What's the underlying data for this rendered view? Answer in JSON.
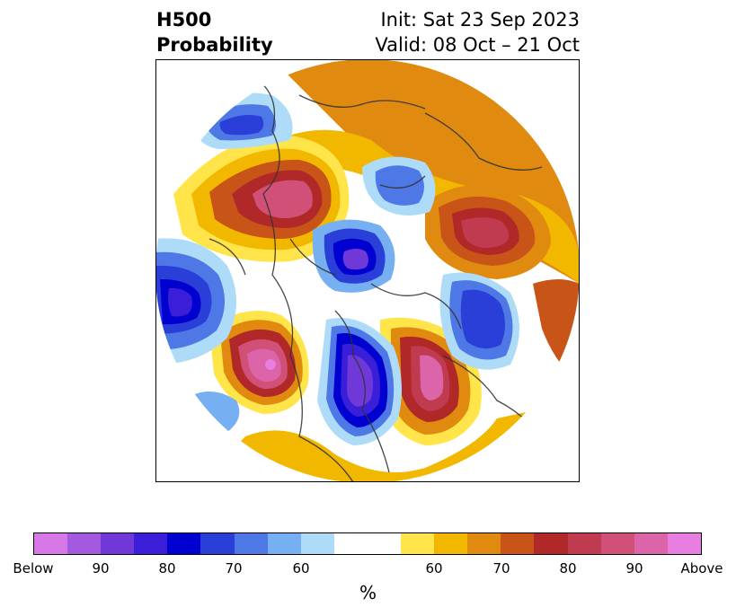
{
  "header": {
    "variable": "H500",
    "product": "Probability",
    "init": "Init: Sat 23 Sep 2023",
    "valid": "Valid: 08 Oct – 21 Oct"
  },
  "colorbar": {
    "colors": [
      "#d878e8",
      "#a45ae0",
      "#7038d8",
      "#3a1ed8",
      "#0000d0",
      "#2a3ed8",
      "#4e78e6",
      "#76b0f2",
      "#aedcf8",
      "#ffffff",
      "#ffffff",
      "#ffe44a",
      "#f2b800",
      "#e08a10",
      "#c85418",
      "#b02828",
      "#c03a50",
      "#d05078",
      "#dc64a8",
      "#e87ee0"
    ],
    "tick_labels": [
      "Below",
      "90",
      "80",
      "70",
      "60",
      "60",
      "70",
      "80",
      "90",
      "Above"
    ],
    "unit": "%"
  }
}
